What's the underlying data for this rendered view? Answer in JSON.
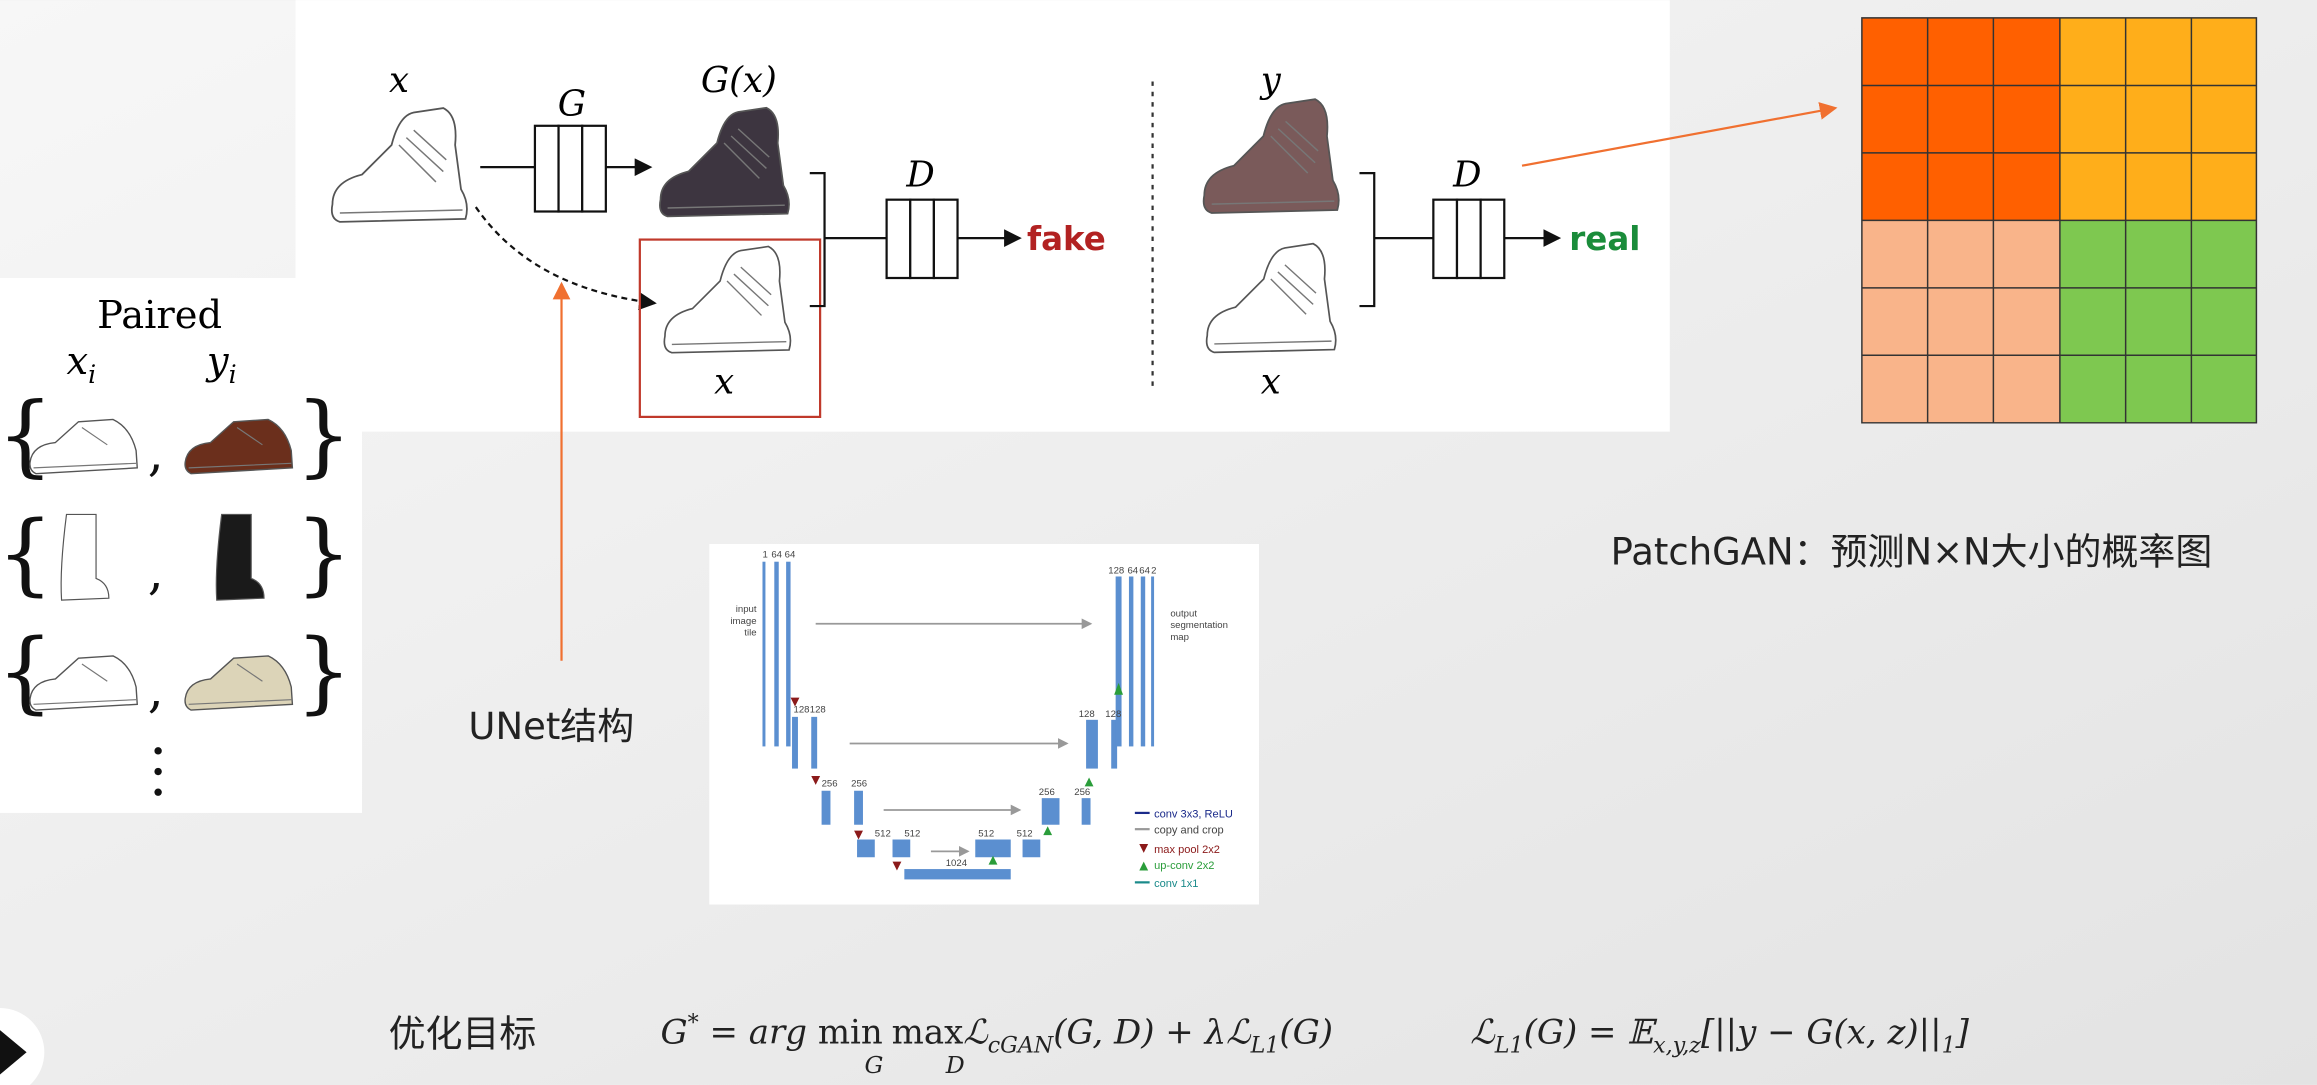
{
  "pix2pix": {
    "generator_input_label": "x",
    "generator_label": "G",
    "generated_label": "G(x)",
    "discriminator_label_fake": "D",
    "fake_label": "fake",
    "condition_label_fake": "x",
    "real_image_label": "y",
    "discriminator_label_real": "D",
    "real_label": "real",
    "condition_label_real": "x"
  },
  "paired": {
    "title": "Paired",
    "x_label": "x",
    "x_sub": "i",
    "y_label": "y",
    "y_sub": "i"
  },
  "patchgan": {
    "caption": "PatchGAN：预测N×N大小的概率图"
  },
  "unet": {
    "caption": "UNet结构",
    "input_label": [
      "input",
      "image",
      "tile"
    ],
    "output_label": [
      "output",
      "segmentation",
      "map"
    ],
    "legend": [
      "conv 3x3, ReLU",
      "copy and crop",
      "max pool 2x2",
      "up-conv 2x2",
      "conv 1x1"
    ],
    "encoder_channels": [
      [
        "1",
        "64",
        "64"
      ],
      [
        "128",
        "128"
      ],
      [
        "256",
        "256"
      ],
      [
        "512",
        "512"
      ],
      [
        "1024"
      ]
    ],
    "decoder_channels": [
      [
        "512",
        "512"
      ],
      [
        "256",
        "256"
      ],
      [
        "128",
        "128"
      ],
      [
        "128",
        "64",
        "64",
        "2"
      ]
    ]
  },
  "objective": {
    "label": "优化目标",
    "formula1": [
      "G",
      "*",
      " = ",
      "arg ",
      "min",
      "G",
      "max",
      "D",
      "ℒ",
      "cGAN",
      "(G, D) + λℒ",
      "L1",
      "(G)"
    ],
    "formula2": [
      "ℒ",
      "L1",
      "(G) = 𝔼",
      "x,y,z",
      "[||y − G(x, z)||",
      "1",
      "]"
    ]
  }
}
